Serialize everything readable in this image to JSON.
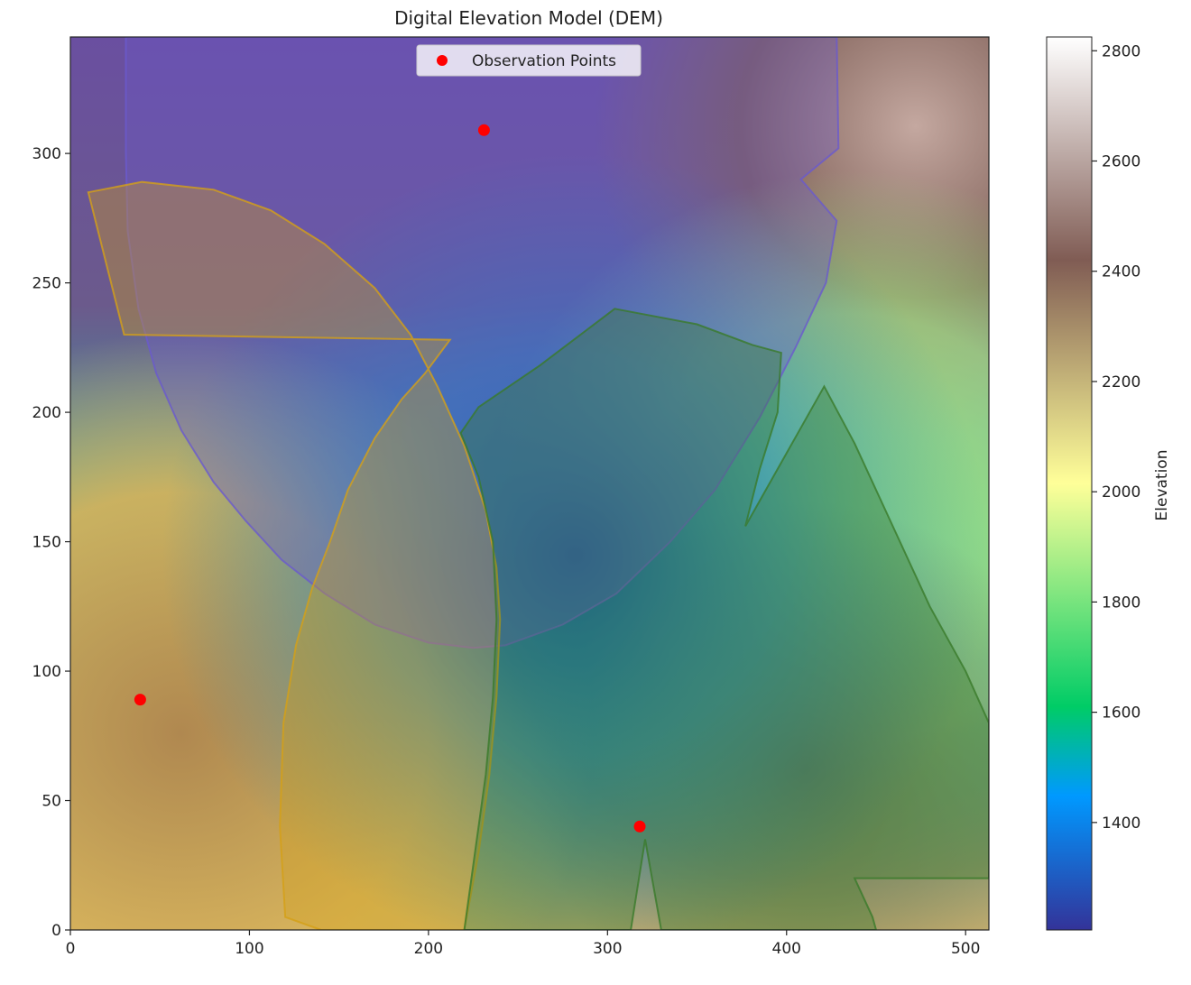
{
  "chart_data": {
    "type": "heatmap",
    "title": "Digital Elevation Model (DEM)",
    "xlabel": "",
    "ylabel": "",
    "xlim": [
      0,
      513
    ],
    "ylim": [
      0,
      345
    ],
    "x_ticks": [
      0,
      100,
      200,
      300,
      400,
      500
    ],
    "y_ticks": [
      0,
      50,
      100,
      150,
      200,
      250,
      300
    ],
    "colormap": "terrain",
    "colorbar": {
      "label": "Elevation",
      "range": [
        1205,
        2825
      ],
      "ticks": [
        1400,
        1600,
        1800,
        2000,
        2200,
        2400,
        2600,
        2800
      ]
    },
    "legend": {
      "entries": [
        "Observation Points"
      ],
      "placement": "upper center"
    },
    "observation_points": [
      {
        "x": 231,
        "y": 309,
        "color": "#ff0000"
      },
      {
        "x": 39,
        "y": 89,
        "color": "#ff0000"
      },
      {
        "x": 318,
        "y": 40,
        "color": "#ff0000"
      }
    ],
    "viewsheds": [
      {
        "observer": 0,
        "color": "#6a5acd",
        "polygon": [
          [
            31,
            345
          ],
          [
            428,
            345
          ],
          [
            429,
            302
          ],
          [
            408,
            290
          ],
          [
            428,
            274
          ],
          [
            422,
            250
          ],
          [
            405,
            225
          ],
          [
            385,
            198
          ],
          [
            360,
            170
          ],
          [
            335,
            150
          ],
          [
            305,
            130
          ],
          [
            275,
            118
          ],
          [
            243,
            110
          ],
          [
            225,
            109
          ],
          [
            200,
            111
          ],
          [
            170,
            118
          ],
          [
            142,
            130
          ],
          [
            118,
            143
          ],
          [
            98,
            158
          ],
          [
            80,
            173
          ],
          [
            62,
            193
          ],
          [
            48,
            215
          ],
          [
            38,
            240
          ],
          [
            32,
            270
          ],
          [
            31,
            300
          ]
        ]
      },
      {
        "observer": 1,
        "color": "#d4a017",
        "polygon": [
          [
            10,
            285
          ],
          [
            40,
            289
          ],
          [
            80,
            286
          ],
          [
            112,
            278
          ],
          [
            142,
            265
          ],
          [
            170,
            248
          ],
          [
            190,
            230
          ],
          [
            205,
            210
          ],
          [
            220,
            187
          ],
          [
            232,
            162
          ],
          [
            238,
            140
          ],
          [
            240,
            120
          ],
          [
            238,
            90
          ],
          [
            234,
            60
          ],
          [
            228,
            30
          ],
          [
            220,
            0
          ],
          [
            140,
            0
          ],
          [
            120,
            5
          ],
          [
            117,
            40
          ],
          [
            119,
            80
          ],
          [
            126,
            110
          ],
          [
            135,
            132
          ],
          [
            145,
            150
          ],
          [
            155,
            170
          ],
          [
            170,
            190
          ],
          [
            185,
            205
          ],
          [
            198,
            215
          ],
          [
            212,
            228
          ],
          [
            30,
            230
          ]
        ]
      },
      {
        "observer": 2,
        "color": "#3a7a2a",
        "polygon": [
          [
            304,
            240
          ],
          [
            350,
            234
          ],
          [
            381,
            226
          ],
          [
            397,
            223
          ],
          [
            395,
            200
          ],
          [
            385,
            178
          ],
          [
            377,
            156
          ],
          [
            421,
            210
          ],
          [
            438,
            188
          ],
          [
            458,
            158
          ],
          [
            480,
            125
          ],
          [
            500,
            100
          ],
          [
            513,
            80
          ],
          [
            513,
            20
          ],
          [
            438,
            20
          ],
          [
            448,
            5
          ],
          [
            450,
            0
          ],
          [
            330,
            0
          ],
          [
            321,
            35
          ],
          [
            313,
            0
          ],
          [
            220,
            0
          ],
          [
            226,
            30
          ],
          [
            232,
            60
          ],
          [
            236,
            90
          ],
          [
            238,
            120
          ],
          [
            236,
            150
          ],
          [
            228,
            175
          ],
          [
            218,
            192
          ],
          [
            228,
            202
          ],
          [
            262,
            218
          ]
        ]
      }
    ]
  }
}
